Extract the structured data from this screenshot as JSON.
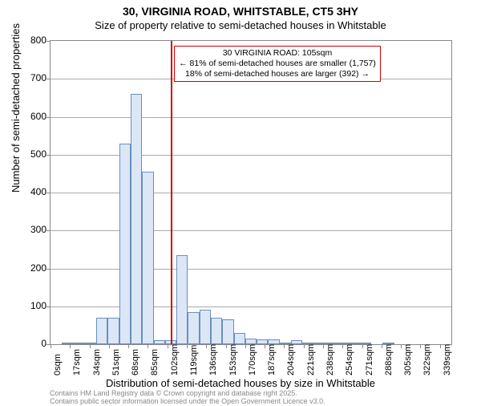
{
  "title": {
    "line1": "30, VIRGINIA ROAD, WHITSTABLE, CT5 3HY",
    "line2": "Size of property relative to semi-detached houses in Whitstable"
  },
  "chart": {
    "type": "histogram",
    "ylabel": "Number of semi-detached properties",
    "xlabel": "Distribution of semi-detached houses by size in Whitstable",
    "ylim": [
      0,
      800
    ],
    "ytick_step": 100,
    "x_tick_labels": [
      "0sqm",
      "17sqm",
      "34sqm",
      "51sqm",
      "68sqm",
      "85sqm",
      "102sqm",
      "119sqm",
      "136sqm",
      "153sqm",
      "170sqm",
      "187sqm",
      "204sqm",
      "221sqm",
      "238sqm",
      "254sqm",
      "271sqm",
      "288sqm",
      "305sqm",
      "322sqm",
      "339sqm"
    ],
    "x_tick_step_sqm": 17,
    "x_range_sqm": [
      0,
      350
    ],
    "bin_width_sqm": 10,
    "bars": [
      {
        "x_sqm": 0,
        "count": 0
      },
      {
        "x_sqm": 10,
        "count": 5
      },
      {
        "x_sqm": 20,
        "count": 5
      },
      {
        "x_sqm": 30,
        "count": 5
      },
      {
        "x_sqm": 40,
        "count": 70
      },
      {
        "x_sqm": 50,
        "count": 70
      },
      {
        "x_sqm": 60,
        "count": 530
      },
      {
        "x_sqm": 70,
        "count": 660
      },
      {
        "x_sqm": 80,
        "count": 455
      },
      {
        "x_sqm": 90,
        "count": 10
      },
      {
        "x_sqm": 100,
        "count": 10
      },
      {
        "x_sqm": 110,
        "count": 235
      },
      {
        "x_sqm": 120,
        "count": 85
      },
      {
        "x_sqm": 130,
        "count": 90
      },
      {
        "x_sqm": 140,
        "count": 70
      },
      {
        "x_sqm": 150,
        "count": 65
      },
      {
        "x_sqm": 160,
        "count": 30
      },
      {
        "x_sqm": 170,
        "count": 15
      },
      {
        "x_sqm": 180,
        "count": 12
      },
      {
        "x_sqm": 190,
        "count": 12
      },
      {
        "x_sqm": 200,
        "count": 5
      },
      {
        "x_sqm": 210,
        "count": 10
      },
      {
        "x_sqm": 220,
        "count": 4
      },
      {
        "x_sqm": 230,
        "count": 2
      },
      {
        "x_sqm": 240,
        "count": 2
      },
      {
        "x_sqm": 250,
        "count": 1
      },
      {
        "x_sqm": 260,
        "count": 1
      },
      {
        "x_sqm": 270,
        "count": 1
      },
      {
        "x_sqm": 280,
        "count": 0
      },
      {
        "x_sqm": 290,
        "count": 1
      },
      {
        "x_sqm": 300,
        "count": 0
      },
      {
        "x_sqm": 310,
        "count": 0
      },
      {
        "x_sqm": 320,
        "count": 0
      },
      {
        "x_sqm": 330,
        "count": 0
      },
      {
        "x_sqm": 340,
        "count": 0
      }
    ],
    "bar_fill_color": "#dbe7f6",
    "bar_border_color": "#6a8fbf",
    "grid_color": "#aaaaaa",
    "frame_color": "#888888",
    "background_color": "#ffffff",
    "marker": {
      "position_sqm": 105,
      "color": "#d40000",
      "annotation": {
        "line1": "30 VIRGINIA ROAD: 105sqm",
        "line2": "← 81% of semi-detached houses are smaller (1,757)",
        "line3": "18% of semi-detached houses are larger (392) →"
      }
    }
  },
  "footer": {
    "line1": "Contains HM Land Registry data © Crown copyright and database right 2025.",
    "line2": "Contains public sector information licensed under the Open Government Licence v3.0."
  },
  "fonts": {
    "title_bold_size": 14,
    "title_sub_size": 13,
    "axis_label_size": 13,
    "tick_size": 12,
    "x_tick_size": 11,
    "annotation_size": 10.5,
    "footer_size": 9
  }
}
